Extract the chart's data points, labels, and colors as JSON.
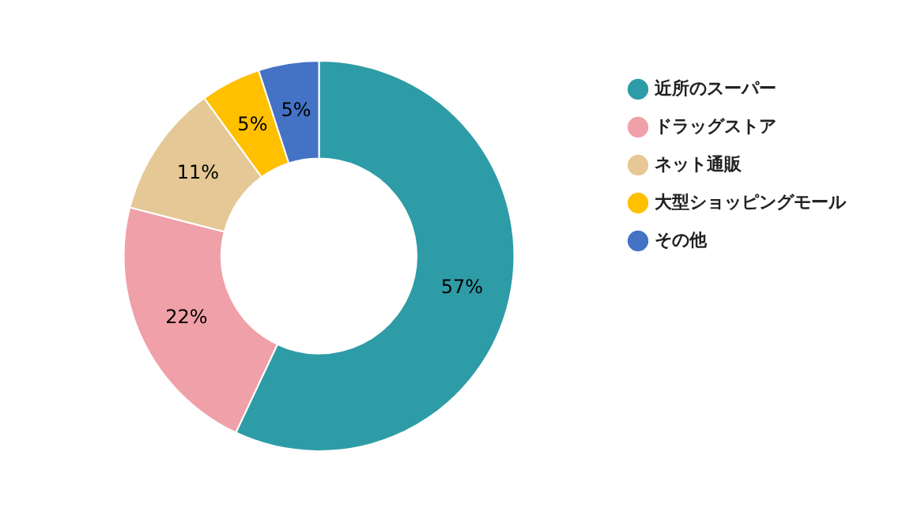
{
  "chart_data": {
    "type": "donut",
    "categories": [
      "近所のスーパー",
      "ドラッグストア",
      "ネット通販",
      "大型ショッピングモール",
      "その他"
    ],
    "values": [
      57,
      22,
      11,
      5,
      5
    ],
    "colors": [
      "#2e9ca6",
      "#f0a0a8",
      "#e5c895",
      "#ffc000",
      "#4472c4"
    ],
    "value_labels": [
      "57%",
      "22%",
      "11%",
      "5%",
      "5%"
    ],
    "legend": "top right"
  }
}
